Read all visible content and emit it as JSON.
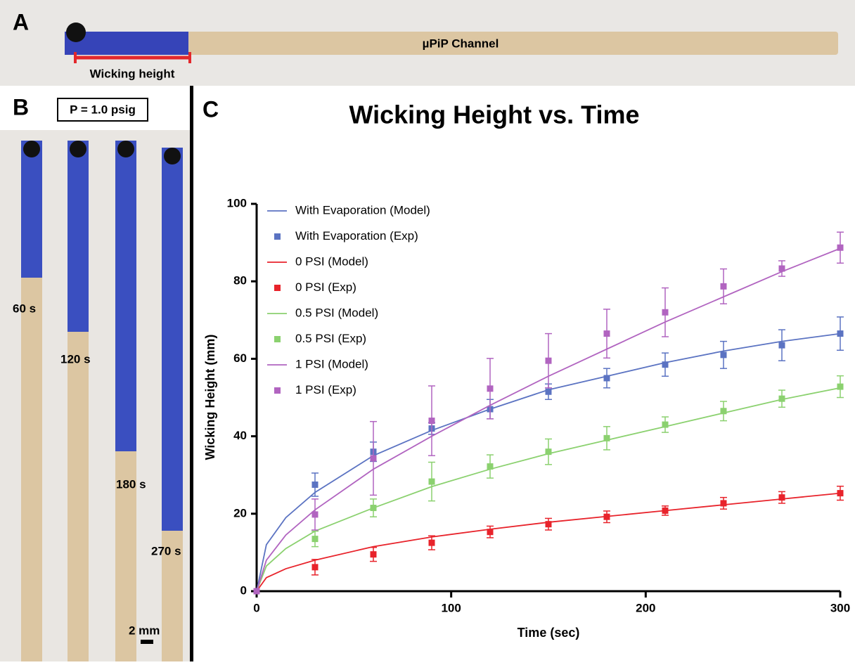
{
  "panel_a": {
    "letter": "A",
    "channel": "µPiP Channel",
    "wicking_label": "Wicking height"
  },
  "panel_b": {
    "letter": "B",
    "pressure": "P = 1.0 psig",
    "times": [
      "60 s",
      "120 s",
      "180 s",
      "270 s"
    ],
    "scale": "2 mm"
  },
  "panel_c": {
    "letter": "C"
  },
  "chart_data": {
    "type": "line",
    "title": "Wicking Height vs. Time",
    "x_label": "Time (sec)",
    "y_label": "Wicking Height (mm)",
    "xlim": [
      0,
      300
    ],
    "xticks": [
      0,
      100,
      200,
      300
    ],
    "ylim": [
      0,
      100
    ],
    "yticks": [
      0,
      20,
      40,
      60,
      80,
      100
    ],
    "legend": "upper left",
    "series": [
      {
        "name": "With Evaporation (Model)",
        "type": "line",
        "color": "#5b73c2",
        "x": [
          0,
          5,
          15,
          30,
          60,
          90,
          120,
          150,
          180,
          210,
          240,
          270,
          300
        ],
        "values": [
          0,
          12,
          19,
          25.5,
          35,
          41.5,
          47,
          52,
          55.5,
          59,
          62,
          64.5,
          66.5
        ]
      },
      {
        "name": "With Evaporation (Exp)",
        "type": "scatter",
        "color": "#5b73c2",
        "x": [
          0,
          30,
          60,
          90,
          120,
          150,
          180,
          210,
          240,
          270,
          300
        ],
        "values": [
          0,
          27.5,
          36,
          42,
          47,
          51.5,
          55,
          58.5,
          61,
          63.5,
          66.5
        ],
        "errors": [
          0,
          3,
          2.5,
          1.5,
          2.5,
          2,
          2.5,
          3,
          3.5,
          4,
          4.3
        ]
      },
      {
        "name": "0 PSI (Model)",
        "type": "line",
        "color": "#e8232b",
        "x": [
          0,
          5,
          15,
          30,
          60,
          90,
          120,
          150,
          180,
          210,
          240,
          270,
          300
        ],
        "values": [
          0,
          3.5,
          5.8,
          8,
          11.5,
          14,
          16,
          17.8,
          19.3,
          20.8,
          22.3,
          23.8,
          25.3
        ]
      },
      {
        "name": "0 PSI (Exp)",
        "type": "scatter",
        "color": "#e8232b",
        "x": [
          0,
          30,
          60,
          90,
          120,
          150,
          180,
          210,
          240,
          270,
          300
        ],
        "values": [
          0,
          6.2,
          9.5,
          12.5,
          15.3,
          17.3,
          19.2,
          20.8,
          22.7,
          24.2,
          25.3
        ],
        "errors": [
          0,
          2,
          1.8,
          1.8,
          1.5,
          1.5,
          1.5,
          1.2,
          1.5,
          1.5,
          1.8
        ]
      },
      {
        "name": "0.5 PSI (Model)",
        "type": "line",
        "color": "#8bd16f",
        "x": [
          0,
          5,
          15,
          30,
          60,
          90,
          120,
          150,
          180,
          210,
          240,
          270,
          300
        ],
        "values": [
          0,
          6.5,
          11,
          15.5,
          21.5,
          27,
          31.5,
          35.5,
          39,
          42.5,
          46,
          49.5,
          52.5
        ]
      },
      {
        "name": "0.5 PSI (Exp)",
        "type": "scatter",
        "color": "#8bd16f",
        "x": [
          0,
          30,
          60,
          90,
          120,
          150,
          180,
          210,
          240,
          270,
          300
        ],
        "values": [
          0,
          13.5,
          21.5,
          28.3,
          32.2,
          36,
          39.5,
          43,
          46.5,
          49.7,
          52.8
        ],
        "errors": [
          0,
          2,
          2.3,
          5,
          3,
          3.3,
          3,
          2,
          2.5,
          2.2,
          2.8
        ]
      },
      {
        "name": "1 PSI (Model)",
        "type": "line",
        "color": "#b164c0",
        "x": [
          0,
          5,
          15,
          30,
          60,
          90,
          120,
          150,
          180,
          210,
          240,
          270,
          300
        ],
        "values": [
          0,
          8,
          14.5,
          21,
          31.5,
          40,
          48,
          55.5,
          62.5,
          69.5,
          76,
          82.5,
          88.5
        ]
      },
      {
        "name": "1 PSI (Exp)",
        "type": "scatter",
        "color": "#b164c0",
        "x": [
          0,
          30,
          60,
          90,
          120,
          150,
          180,
          210,
          240,
          270,
          300
        ],
        "values": [
          0,
          19.8,
          34.3,
          44,
          52.3,
          59.5,
          66.5,
          72,
          78.7,
          83.3,
          88.7
        ],
        "errors": [
          0,
          4,
          9.5,
          9,
          7.8,
          7,
          6.3,
          6.3,
          4.5,
          2,
          4
        ]
      }
    ]
  }
}
